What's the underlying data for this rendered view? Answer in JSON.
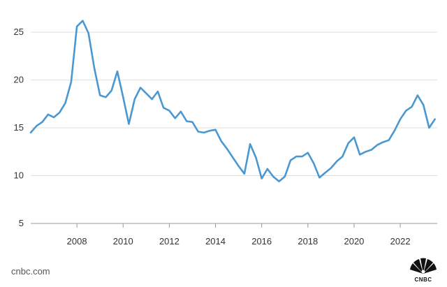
{
  "footer": {
    "source": "cnbc.com"
  },
  "logo": {
    "text": "CNBC",
    "name": "cnbc-peacock-logo"
  },
  "chart_data": {
    "type": "line",
    "title": "",
    "xlabel": "",
    "ylabel": "",
    "xlim": [
      2006.0,
      2023.6
    ],
    "ylim": [
      5,
      28
    ],
    "y_ticks": [
      5,
      10,
      15,
      20,
      25
    ],
    "x_ticks": [
      2008,
      2010,
      2012,
      2014,
      2016,
      2018,
      2020,
      2022
    ],
    "grid": true,
    "color": "#4a98d2",
    "series": [
      {
        "x": [
          2006.0,
          2006.25,
          2006.5,
          2006.75,
          2007.0,
          2007.25,
          2007.5,
          2007.75,
          2008.0,
          2008.25,
          2008.5,
          2008.75,
          2009.0,
          2009.25,
          2009.5,
          2009.75,
          2010.0,
          2010.25,
          2010.5,
          2010.75,
          2011.0,
          2011.25,
          2011.5,
          2011.75,
          2012.0,
          2012.25,
          2012.5,
          2012.75,
          2013.0,
          2013.25,
          2013.5,
          2013.75,
          2014.0,
          2014.25,
          2014.5,
          2014.75,
          2015.0,
          2015.25,
          2015.5,
          2015.75,
          2016.0,
          2016.25,
          2016.5,
          2016.75,
          2017.0,
          2017.25,
          2017.5,
          2017.75,
          2018.0,
          2018.25,
          2018.5,
          2018.75,
          2019.0,
          2019.25,
          2019.5,
          2019.75,
          2020.0,
          2020.25,
          2020.5,
          2020.75,
          2021.0,
          2021.25,
          2021.5,
          2021.75,
          2022.0,
          2022.25,
          2022.5,
          2022.75,
          2023.0,
          2023.25,
          2023.5
        ],
        "values": [
          14.5,
          15.2,
          15.6,
          16.4,
          16.1,
          16.6,
          17.6,
          19.8,
          25.6,
          26.2,
          24.9,
          21.3,
          18.4,
          18.2,
          18.9,
          20.9,
          18.2,
          15.4,
          18.0,
          19.2,
          18.6,
          18.0,
          18.8,
          17.1,
          16.8,
          16.0,
          16.7,
          15.7,
          15.6,
          14.6,
          14.5,
          14.7,
          14.8,
          13.6,
          12.8,
          11.9,
          11.0,
          10.2,
          13.3,
          11.9,
          9.7,
          10.7,
          9.9,
          9.4,
          9.9,
          11.6,
          12.0,
          12.0,
          12.4,
          11.3,
          9.8,
          10.3,
          10.8,
          11.5,
          12.0,
          13.4,
          14.0,
          12.2,
          12.5,
          12.7,
          13.2,
          13.5,
          13.7,
          14.7,
          15.9,
          16.8,
          17.2,
          18.4,
          17.4,
          15.0,
          15.9
        ]
      }
    ]
  }
}
